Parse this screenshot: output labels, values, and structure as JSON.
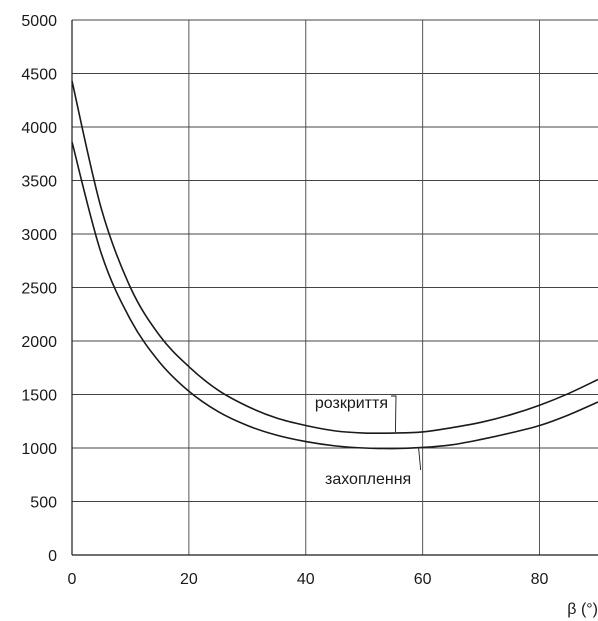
{
  "chart_data": {
    "type": "line",
    "title": "",
    "xlabel": "β (°)",
    "ylabel": "",
    "xlim": [
      0,
      90
    ],
    "ylim": [
      0,
      5000
    ],
    "x_ticks": [
      0,
      20,
      40,
      60,
      80
    ],
    "y_ticks": [
      0,
      500,
      1000,
      1500,
      2000,
      2500,
      3000,
      3500,
      4000,
      4500,
      5000
    ],
    "grid": true,
    "line_color": "#1a1a1a",
    "series": [
      {
        "label": "розкриття",
        "x": [
          0,
          5,
          10,
          15,
          20,
          25,
          30,
          35,
          40,
          45,
          50,
          55,
          60,
          65,
          70,
          75,
          80,
          85,
          90
        ],
        "y": [
          4430,
          3240,
          2500,
          2050,
          1760,
          1540,
          1390,
          1280,
          1210,
          1160,
          1140,
          1140,
          1150,
          1190,
          1240,
          1310,
          1400,
          1510,
          1640
        ]
      },
      {
        "label": "захоплення",
        "x": [
          0,
          5,
          10,
          15,
          20,
          25,
          30,
          35,
          40,
          45,
          50,
          55,
          60,
          65,
          70,
          75,
          80,
          85,
          90
        ],
        "y": [
          3860,
          2820,
          2200,
          1800,
          1530,
          1340,
          1210,
          1120,
          1060,
          1020,
          1000,
          995,
          1005,
          1030,
          1080,
          1140,
          1210,
          1310,
          1430
        ]
      }
    ],
    "annotations": [
      {
        "text": "розкриття",
        "series": 0,
        "at_x": 55
      },
      {
        "text": "захоплення",
        "series": 1,
        "at_x": 60
      }
    ]
  }
}
